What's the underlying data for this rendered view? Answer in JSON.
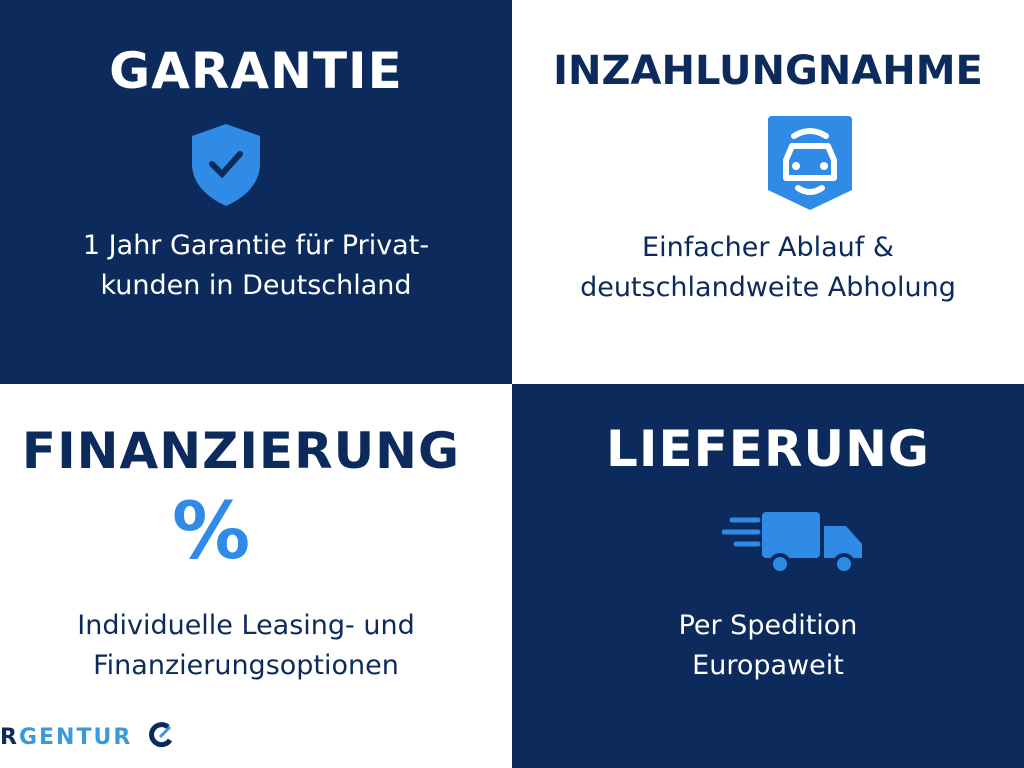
{
  "colors": {
    "navy": "#0c2b5c",
    "accent": "#2f8be6",
    "white": "#ffffff"
  },
  "tiles": [
    {
      "title": "GARANTIE",
      "icon": "shield-check-icon",
      "desc1": "1 Jahr Garantie für Privat-",
      "desc2": "kunden in Deutschland"
    },
    {
      "title": "INZAHLUNGNAHME",
      "icon": "car-badge-icon",
      "desc1": "Einfacher Ablauf &",
      "desc2": "deutschlandweite Abholung"
    },
    {
      "title": "FINANZIERUNG",
      "icon": "percent-icon",
      "desc1": "Individuelle Leasing- und",
      "desc2": "Finanzierungsoptionen"
    },
    {
      "title": "LIEFERUNG",
      "icon": "delivery-truck-icon",
      "desc1": "Per Spedition",
      "desc2": "Europaweit"
    }
  ],
  "logo": {
    "text_dark": "R",
    "text_light": "GENTUR"
  }
}
